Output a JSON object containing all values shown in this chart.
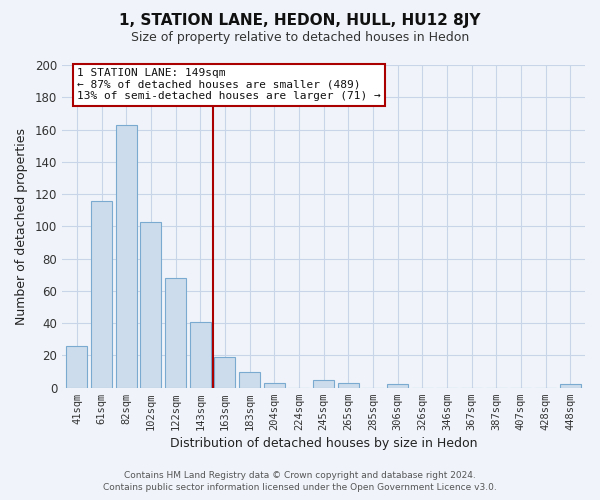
{
  "title": "1, STATION LANE, HEDON, HULL, HU12 8JY",
  "subtitle": "Size of property relative to detached houses in Hedon",
  "xlabel": "Distribution of detached houses by size in Hedon",
  "ylabel": "Number of detached properties",
  "bar_labels": [
    "41sqm",
    "61sqm",
    "82sqm",
    "102sqm",
    "122sqm",
    "143sqm",
    "163sqm",
    "183sqm",
    "204sqm",
    "224sqm",
    "245sqm",
    "265sqm",
    "285sqm",
    "306sqm",
    "326sqm",
    "346sqm",
    "367sqm",
    "387sqm",
    "407sqm",
    "428sqm",
    "448sqm"
  ],
  "bar_values": [
    26,
    116,
    163,
    103,
    68,
    41,
    19,
    10,
    3,
    0,
    5,
    3,
    0,
    2,
    0,
    0,
    0,
    0,
    0,
    0,
    2
  ],
  "bar_color": "#cddcec",
  "bar_edge_color": "#7aaad0",
  "vline_x": 5.5,
  "vline_color": "#aa0000",
  "annotation_lines": [
    "1 STATION LANE: 149sqm",
    "← 87% of detached houses are smaller (489)",
    "13% of semi-detached houses are larger (71) →"
  ],
  "ylim": [
    0,
    200
  ],
  "yticks": [
    0,
    20,
    40,
    60,
    80,
    100,
    120,
    140,
    160,
    180,
    200
  ],
  "footer_lines": [
    "Contains HM Land Registry data © Crown copyright and database right 2024.",
    "Contains public sector information licensed under the Open Government Licence v3.0."
  ],
  "background_color": "#f0f4fa",
  "plot_bg_color": "#f0f4fa",
  "grid_color": "#c8d4e8"
}
